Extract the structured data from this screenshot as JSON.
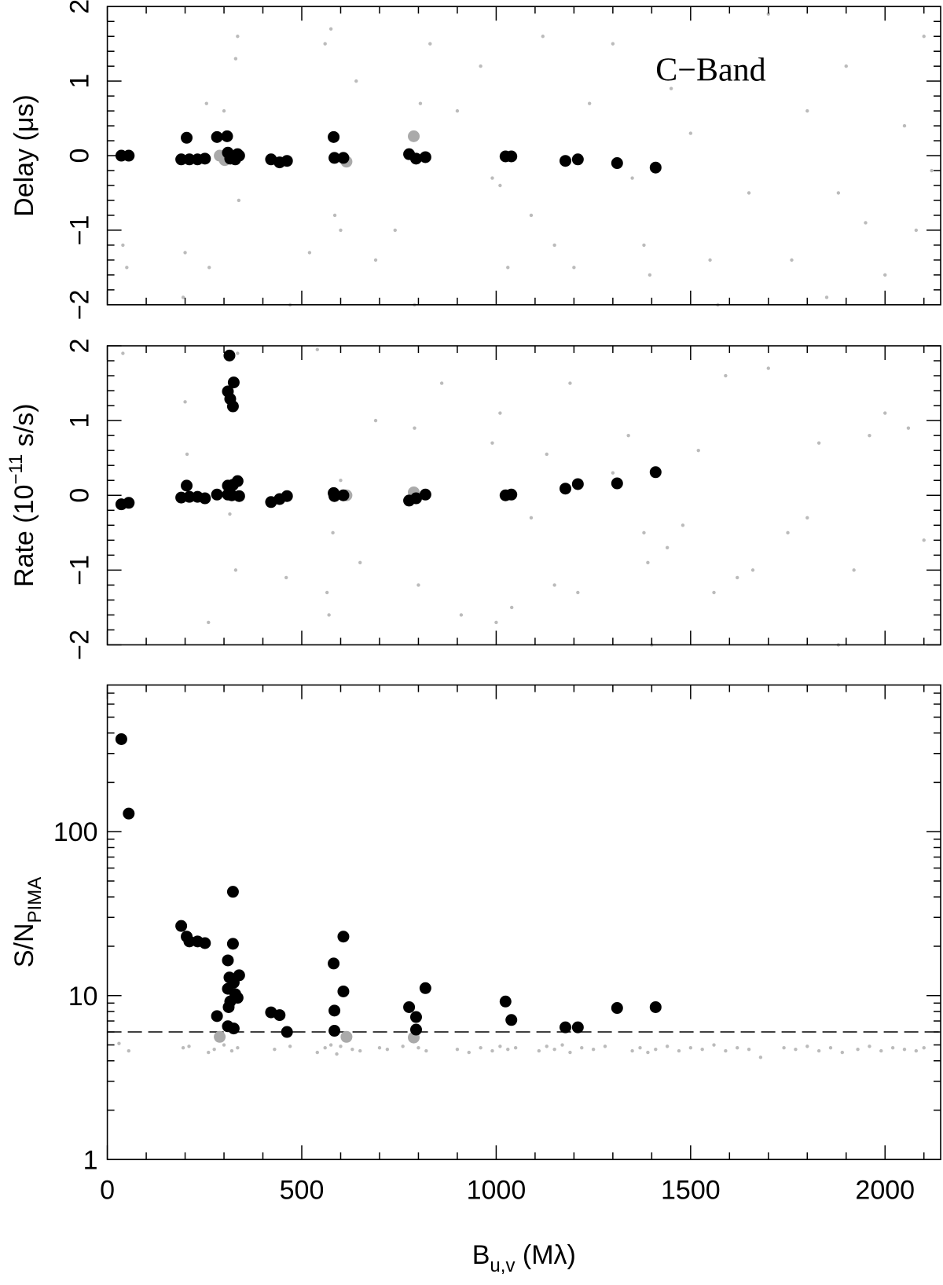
{
  "chart_data": [
    {
      "type": "scatter",
      "ylabel": [
        "Delay (μs)"
      ],
      "ylabel_style": [
        "normal"
      ],
      "annotation": "C−Band",
      "xlim": [
        0,
        2143
      ],
      "xticks": [
        0,
        500,
        1000,
        1500,
        2000
      ],
      "xminorticks": [
        100,
        200,
        300,
        400,
        600,
        700,
        800,
        900,
        1100,
        1200,
        1300,
        1400,
        1600,
        1700,
        1800,
        1900,
        2100
      ],
      "ylim": [
        -2,
        2
      ],
      "yticks": [
        {
          "value": -2,
          "label": "−2"
        },
        {
          "value": -1,
          "label": "−1"
        },
        0,
        1,
        2
      ],
      "yminorticks": [
        -1.8,
        -1.6,
        -1.4,
        -1.2,
        -0.8,
        -0.6,
        -0.4,
        -0.2,
        0.2,
        0.4,
        0.6,
        0.8,
        1.2,
        1.4,
        1.6,
        1.8
      ],
      "series": [
        {
          "color": "#bbbbbb",
          "marker_size": 2.2,
          "x": [
            40,
            50,
            200,
            195,
            255,
            262,
            300,
            330,
            335,
            338,
            470,
            520,
            560,
            575,
            585,
            600,
            640,
            690,
            740,
            790,
            805,
            830,
            900,
            960,
            990,
            1010,
            1030,
            1090,
            1120,
            1150,
            1200,
            1240,
            1300,
            1350,
            1380,
            1395,
            1450,
            1500,
            1550,
            1600,
            1650,
            1700,
            1760,
            1800,
            1850,
            1900,
            1950,
            2000,
            2050,
            2100,
            2120,
            1570,
            1880,
            2080
          ],
          "values": [
            -1.2,
            -1.5,
            -1.3,
            -1.9,
            0.7,
            -1.5,
            0.6,
            1.3,
            1.6,
            -0.6,
            -2.0,
            -1.3,
            1.5,
            1.7,
            -0.8,
            -1.0,
            1.0,
            -1.4,
            -1.0,
            -2.0,
            0.7,
            1.5,
            0.6,
            1.2,
            -0.3,
            -0.4,
            -1.5,
            -0.8,
            1.6,
            -1.2,
            -1.5,
            0.7,
            1.5,
            -0.3,
            -1.2,
            -1.6,
            0.9,
            0.3,
            -1.4,
            1.2,
            -0.5,
            1.9,
            -1.4,
            0.6,
            -1.9,
            1.2,
            -0.9,
            -1.6,
            0.4,
            1.6,
            -0.2,
            -2.0,
            -0.5,
            -1.0
          ]
        },
        {
          "color": "#aaaaaa",
          "marker_size": 7.5,
          "x": [
            289,
            302,
            615,
            788
          ],
          "values": [
            0,
            -0.06,
            -0.08,
            0.26
          ]
        },
        {
          "color": "#000000",
          "marker_size": 7.5,
          "x": [
            36,
            55,
            190,
            204,
            211,
            232,
            251,
            282,
            308,
            310,
            316,
            329,
            335,
            339,
            421,
            443,
            462,
            582,
            584,
            607,
            776,
            794,
            818,
            1024,
            1039,
            1178,
            1210,
            1311,
            1410
          ],
          "values": [
            0,
            0,
            -0.05,
            0.24,
            -0.05,
            -0.05,
            -0.04,
            0.25,
            0.26,
            0.04,
            -0.04,
            -0.05,
            0.02,
            0,
            -0.05,
            -0.09,
            -0.07,
            0.25,
            -0.03,
            -0.03,
            0.02,
            -0.04,
            -0.02,
            -0.01,
            -0.01,
            -0.07,
            -0.05,
            -0.1,
            -0.16
          ]
        }
      ]
    },
    {
      "type": "scatter",
      "ylabel": [
        "Rate (10",
        "−11",
        " s/s)"
      ],
      "ylabel_style": [
        "normal",
        "sup",
        "normal"
      ],
      "xlim": [
        0,
        2143
      ],
      "xticks": [
        0,
        500,
        1000,
        1500,
        2000
      ],
      "xminorticks": [
        100,
        200,
        300,
        400,
        600,
        700,
        800,
        900,
        1100,
        1200,
        1300,
        1400,
        1600,
        1700,
        1800,
        1900,
        2100
      ],
      "ylim": [
        -2,
        2
      ],
      "yticks": [
        {
          "value": -2,
          "label": "−2"
        },
        {
          "value": -1,
          "label": "−1"
        },
        0,
        1,
        2
      ],
      "yminorticks": [
        -1.8,
        -1.6,
        -1.4,
        -1.2,
        -0.8,
        -0.6,
        -0.4,
        -0.2,
        0.2,
        0.4,
        0.6,
        0.8,
        1.2,
        1.4,
        1.6,
        1.8
      ],
      "series": [
        {
          "color": "#bbbbbb",
          "marker_size": 2.2,
          "x": [
            40,
            200,
            205,
            260,
            315,
            330,
            335,
            460,
            540,
            565,
            570,
            580,
            600,
            650,
            690,
            800,
            790,
            860,
            910,
            990,
            1000,
            1010,
            1040,
            1090,
            1130,
            1150,
            1190,
            1210,
            1300,
            1340,
            1380,
            1390,
            1400,
            1440,
            1480,
            1520,
            1560,
            1590,
            1620,
            1660,
            1700,
            1750,
            1800,
            1830,
            1880,
            1920,
            1960,
            2000,
            2060,
            2100
          ],
          "values": [
            1.9,
            1.25,
            0.55,
            -1.7,
            -0.25,
            -1.0,
            1.9,
            -1.1,
            1.95,
            -1.3,
            -1.6,
            -0.5,
            0.2,
            -0.9,
            1.0,
            -1.2,
            0.9,
            1.5,
            -1.6,
            0.7,
            -1.7,
            1.1,
            -1.5,
            -0.3,
            0.55,
            -1.2,
            1.5,
            -1.3,
            0.3,
            0.8,
            -0.5,
            -0.9,
            -2.0,
            -0.7,
            -0.4,
            0.6,
            -1.3,
            1.6,
            -1.1,
            -1.0,
            1.7,
            -0.5,
            -0.3,
            0.7,
            -2.0,
            -1.0,
            0.8,
            1.1,
            0.9,
            -0.6
          ]
        },
        {
          "color": "#aaaaaa",
          "marker_size": 7.5,
          "x": [
            615,
            788
          ],
          "values": [
            0,
            0.04
          ]
        },
        {
          "color": "#000000",
          "marker_size": 7.5,
          "x": [
            36,
            55,
            190,
            204,
            211,
            232,
            251,
            282,
            310,
            314,
            310,
            316,
            323,
            325,
            310,
            323,
            335,
            339,
            320,
            421,
            443,
            462,
            582,
            584,
            607,
            776,
            794,
            818,
            1024,
            1039,
            1178,
            1210,
            1311,
            1410
          ],
          "values": [
            -0.12,
            -0.1,
            -0.03,
            0.13,
            -0.02,
            -0.02,
            -0.04,
            0.01,
            0.01,
            1.87,
            1.39,
            1.29,
            1.19,
            1.51,
            0.13,
            0.14,
            0.19,
            -0.01,
            0,
            -0.09,
            -0.05,
            -0.01,
            0.03,
            -0.01,
            0,
            -0.07,
            -0.04,
            0.01,
            0,
            0.01,
            0.09,
            0.15,
            0.16,
            0.31
          ]
        }
      ]
    },
    {
      "type": "scatter",
      "ylabel": [
        "S/N",
        "PIMA"
      ],
      "ylabel_style": [
        "normal",
        "sub"
      ],
      "xlabel": [
        "B",
        "u,v",
        " (Mλ)"
      ],
      "xlabel_style": [
        "normal",
        "sub",
        "normal"
      ],
      "xlim": [
        0,
        2143
      ],
      "xticks": [
        0,
        500,
        1000,
        1500,
        2000
      ],
      "xtick_labels": true,
      "xminorticks": [
        100,
        200,
        300,
        400,
        600,
        700,
        800,
        900,
        1100,
        1200,
        1300,
        1400,
        1600,
        1700,
        1800,
        1900,
        2100
      ],
      "ylog": true,
      "ylim": [
        1,
        785
      ],
      "yticks": [
        1,
        10,
        100
      ],
      "yminorticks": [
        2,
        3,
        4,
        5,
        6,
        7,
        8,
        9,
        20,
        30,
        40,
        50,
        60,
        70,
        80,
        90,
        200,
        300,
        400,
        500,
        600,
        700
      ],
      "hline": 6,
      "series": [
        {
          "color": "#bbbbbb",
          "marker_size": 2.2,
          "x": [
            30,
            55,
            195,
            210,
            260,
            275,
            300,
            320,
            335,
            430,
            470,
            540,
            560,
            575,
            590,
            600,
            630,
            650,
            700,
            720,
            760,
            800,
            820,
            900,
            930,
            960,
            990,
            1010,
            1030,
            1050,
            1110,
            1130,
            1150,
            1170,
            1190,
            1220,
            1250,
            1280,
            1350,
            1370,
            1390,
            1410,
            1440,
            1470,
            1500,
            1530,
            1560,
            1590,
            1620,
            1650,
            1680,
            1740,
            1770,
            1800,
            1830,
            1860,
            1890,
            1930,
            1960,
            1990,
            2020,
            2050,
            2080,
            2100
          ],
          "values": [
            5.1,
            4.6,
            4.8,
            4.9,
            4.5,
            4.7,
            5.0,
            4.6,
            4.8,
            4.7,
            4.9,
            4.5,
            4.8,
            5.0,
            4.4,
            4.9,
            4.7,
            4.6,
            4.8,
            4.7,
            4.9,
            4.8,
            4.6,
            4.7,
            4.5,
            4.8,
            4.6,
            4.9,
            4.7,
            4.8,
            4.6,
            4.9,
            4.7,
            5.0,
            4.5,
            4.8,
            4.7,
            4.9,
            4.6,
            4.8,
            4.5,
            4.7,
            4.9,
            4.6,
            4.8,
            4.7,
            5.0,
            4.6,
            4.8,
            4.7,
            4.2,
            4.8,
            4.7,
            4.9,
            4.6,
            4.8,
            4.5,
            4.7,
            4.9,
            4.6,
            4.8,
            4.7,
            4.6,
            4.8
          ]
        },
        {
          "color": "#aaaaaa",
          "marker_size": 7.5,
          "x": [
            289,
            615,
            788
          ],
          "values": [
            5.6,
            5.6,
            5.55
          ]
        },
        {
          "color": "#000000",
          "marker_size": 7.5,
          "x": [
            36,
            55,
            190,
            204,
            211,
            232,
            251,
            282,
            310,
            314,
            310,
            312,
            316,
            323,
            323,
            325,
            329,
            335,
            339,
            310,
            325,
            421,
            443,
            462,
            582,
            584,
            584,
            607,
            607,
            776,
            794,
            794,
            818,
            1024,
            1039,
            1178,
            1210,
            1311,
            1410
          ],
          "values": [
            367,
            129,
            26.6,
            22.9,
            21.4,
            21.4,
            20.9,
            7.5,
            16.4,
            12.9,
            11,
            8.5,
            9.2,
            43,
            20.7,
            12,
            10.2,
            9.7,
            13.3,
            6.5,
            6.3,
            7.9,
            7.6,
            6,
            15.7,
            8.1,
            6.1,
            22.9,
            10.6,
            8.5,
            7.4,
            6.2,
            11.1,
            9.2,
            7.1,
            6.4,
            6.4,
            8.4,
            8.5
          ]
        }
      ]
    }
  ]
}
